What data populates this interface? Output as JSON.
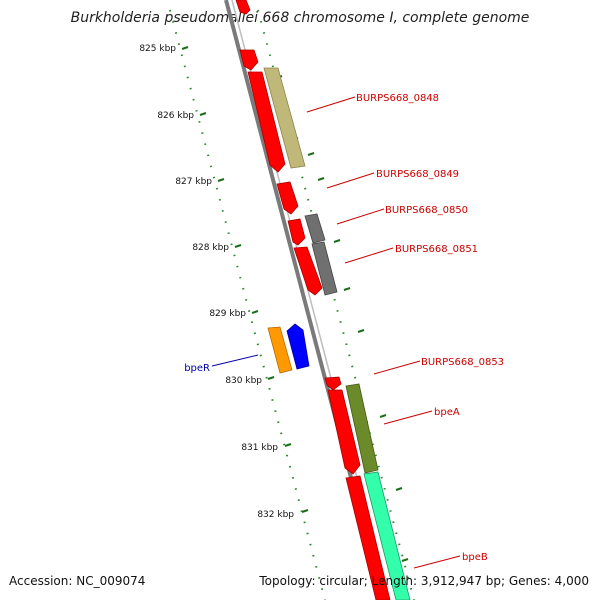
{
  "title": "Burkholderia pseudomallei 668 chromosome I, complete genome",
  "footer": {
    "accession": "Accession: NC_009074",
    "summary": "Topology: circular; Length: 3,912,947 bp; Genes: 4,000"
  },
  "ticks": [
    "825 kbp",
    "826 kbp",
    "827 kbp",
    "828 kbp",
    "829 kbp",
    "830 kbp",
    "831 kbp",
    "832 kbp"
  ],
  "colors": {
    "backbone": "#808080",
    "forward_cds": "#ff0000",
    "reverse_cds": "#ff0000",
    "dots": "#2a8a2a",
    "label_red": "#cc0000",
    "label_blue": "#0000aa"
  },
  "genes": [
    {
      "label": "BURPS668_0848",
      "color": "#c0b878"
    },
    {
      "label": "BURPS668_0849",
      "color": ""
    },
    {
      "label": "BURPS668_0850",
      "color": "#707070"
    },
    {
      "label": "BURPS668_0851",
      "color": "#707070"
    },
    {
      "label": "BURPS668_0853",
      "color": ""
    },
    {
      "label": "bpeR",
      "color": "#ff9900"
    },
    {
      "label": "bpeA",
      "color": "#6b8a2a"
    },
    {
      "label": "bpeB",
      "color": "#33ffaa"
    }
  ]
}
